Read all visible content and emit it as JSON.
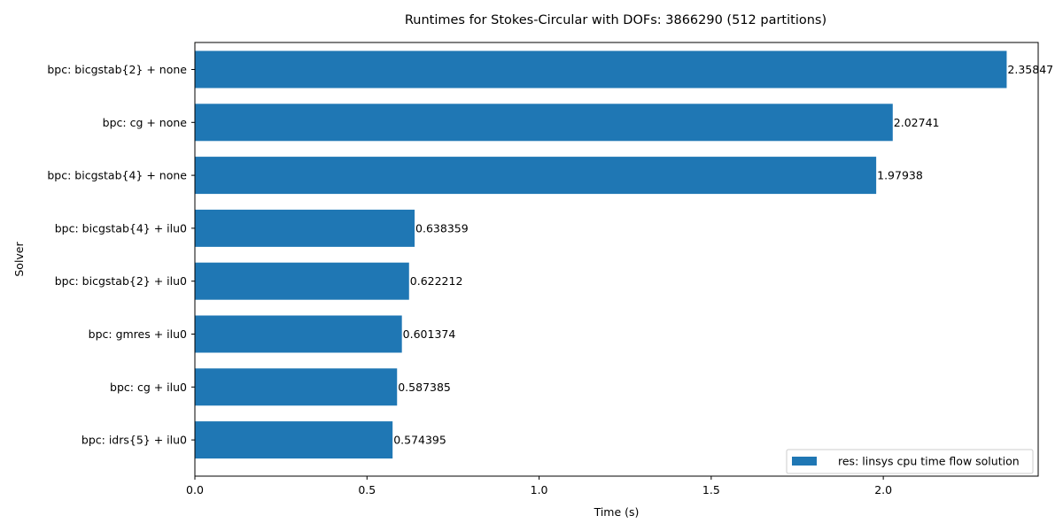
{
  "chart_data": {
    "type": "bar",
    "orientation": "horizontal",
    "title": "Runtimes for Stokes-Circular with DOFs: 3866290 (512 partitions)",
    "xlabel": "Time (s)",
    "ylabel": "Solver",
    "xlim": [
      0,
      2.45
    ],
    "xticks": [
      "0.0",
      "0.5",
      "1.0",
      "1.5",
      "2.0"
    ],
    "grid": false,
    "legend_position": "lower-right",
    "categories": [
      "bpc: bicgstab{2} + none",
      "bpc: cg + none",
      "bpc: bicgstab{4} + none",
      "bpc: bicgstab{4} + ilu0",
      "bpc: bicgstab{2} + ilu0",
      "bpc: gmres + ilu0",
      "bpc: cg + ilu0",
      "bpc: idrs{5} + ilu0"
    ],
    "series": [
      {
        "name": "res: linsys cpu time flow solution",
        "color": "#1f77b4",
        "values": [
          2.35847,
          2.02741,
          1.97938,
          0.638359,
          0.622212,
          0.601374,
          0.587385,
          0.574395
        ],
        "labels": [
          "2.35847",
          "2.02741",
          "1.97938",
          "0.638359",
          "0.622212",
          "0.601374",
          "0.587385",
          "0.574395"
        ]
      }
    ]
  }
}
